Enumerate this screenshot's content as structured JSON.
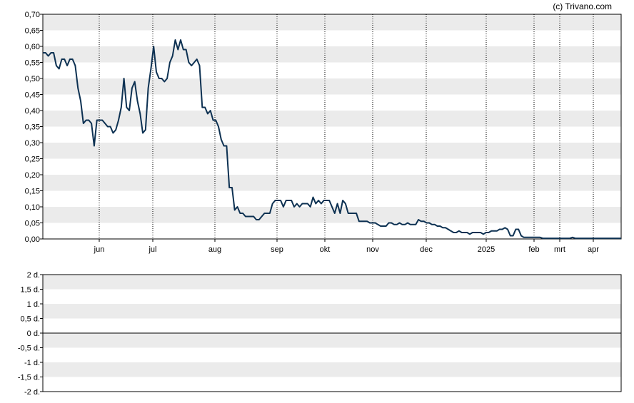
{
  "copyright": "(c) Trivano.com",
  "colors": {
    "line": "#0d3152",
    "band": "#ebebeb",
    "grid": "#000000",
    "zero": "#000000"
  },
  "chart_data": [
    {
      "type": "line",
      "ylim": [
        0,
        0.7
      ],
      "y_ticks": [
        "0,70",
        "0,65",
        "0,60",
        "0,55",
        "0,50",
        "0,45",
        "0,40",
        "0,35",
        "0,30",
        "0,25",
        "0,20",
        "0,15",
        "0,10",
        "0,05",
        "0,00"
      ],
      "x_ticks": [
        "jun",
        "jul",
        "aug",
        "sep",
        "okt",
        "nov",
        "dec",
        "2025",
        "feb",
        "mrt",
        "apr"
      ],
      "grid": "vertical dotted at month ticks, alternating horizontal bands",
      "series": [
        {
          "values": [
            0.58,
            0.58,
            0.57,
            0.58,
            0.58,
            0.54,
            0.53,
            0.56,
            0.56,
            0.54,
            0.56,
            0.56,
            0.54,
            0.47,
            0.43,
            0.36,
            0.37,
            0.37,
            0.36,
            0.29,
            0.37,
            0.37,
            0.37,
            0.36,
            0.35,
            0.35,
            0.33,
            0.34,
            0.37,
            0.41,
            0.5,
            0.41,
            0.4,
            0.47,
            0.49,
            0.43,
            0.39,
            0.33,
            0.34,
            0.47,
            0.53,
            0.6,
            0.52,
            0.5,
            0.5,
            0.49,
            0.5,
            0.55,
            0.57,
            0.62,
            0.59,
            0.62,
            0.59,
            0.59,
            0.55,
            0.54,
            0.55,
            0.56,
            0.54,
            0.41,
            0.41,
            0.39,
            0.4,
            0.37,
            0.37,
            0.35,
            0.31,
            0.29,
            0.29,
            0.16,
            0.16,
            0.09,
            0.1,
            0.08,
            0.08,
            0.07,
            0.07,
            0.07,
            0.07,
            0.06,
            0.06,
            0.07,
            0.08,
            0.08,
            0.08,
            0.11,
            0.12,
            0.12,
            0.12,
            0.1,
            0.12,
            0.12,
            0.12,
            0.1,
            0.11,
            0.1,
            0.11,
            0.11,
            0.11,
            0.1,
            0.13,
            0.11,
            0.12,
            0.11,
            0.12,
            0.12,
            0.12,
            0.1,
            0.08,
            0.11,
            0.08,
            0.12,
            0.11,
            0.08,
            0.08,
            0.08,
            0.08,
            0.055,
            0.055,
            0.055,
            0.055,
            0.05,
            0.05,
            0.05,
            0.045,
            0.04,
            0.04,
            0.04,
            0.05,
            0.05,
            0.045,
            0.045,
            0.05,
            0.045,
            0.045,
            0.05,
            0.045,
            0.045,
            0.045,
            0.06,
            0.055,
            0.055,
            0.05,
            0.05,
            0.045,
            0.045,
            0.04,
            0.04,
            0.035,
            0.035,
            0.03,
            0.025,
            0.02,
            0.02,
            0.025,
            0.02,
            0.02,
            0.02,
            0.015,
            0.02,
            0.02,
            0.02,
            0.02,
            0.015,
            0.02,
            0.02,
            0.025,
            0.025,
            0.025,
            0.03,
            0.03,
            0.035,
            0.03,
            0.01,
            0.01,
            0.03,
            0.03,
            0.01,
            0.005,
            0.005,
            0.005,
            0.005,
            0.005,
            0.005,
            0.005,
            0.002,
            0.002,
            0.002,
            0.002,
            0.002,
            0.002,
            0.002,
            0.002,
            0.002,
            0.002,
            0.002,
            0.005,
            0.002,
            0.002,
            0.002,
            0.002,
            0.002,
            0.002,
            0.002,
            0.002,
            0.002,
            0.002,
            0.002,
            0.002,
            0.002,
            0.002,
            0.002,
            0.002,
            0.002,
            0.002
          ]
        }
      ]
    },
    {
      "type": "line",
      "ylim": [
        -2,
        2
      ],
      "y_ticks": [
        "2 d.",
        "1,5 d.",
        "1 d.",
        "0,5 d.",
        "0 d.",
        "-0,5 d.",
        "-1 d.",
        "-1,5 d.",
        "-2 d."
      ],
      "grid": "alternating horizontal bands, baseline at 0",
      "series": []
    }
  ]
}
